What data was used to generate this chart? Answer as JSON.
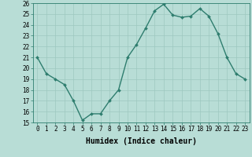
{
  "x": [
    0,
    1,
    2,
    3,
    4,
    5,
    6,
    7,
    8,
    9,
    10,
    11,
    12,
    13,
    14,
    15,
    16,
    17,
    18,
    19,
    20,
    21,
    22,
    23
  ],
  "y": [
    21.0,
    19.5,
    19.0,
    18.5,
    17.0,
    15.2,
    15.8,
    15.8,
    17.0,
    18.0,
    21.0,
    22.2,
    23.7,
    25.3,
    25.9,
    24.9,
    24.7,
    24.8,
    25.5,
    24.8,
    23.2,
    21.0,
    19.5,
    19.0
  ],
  "line_color": "#2e7d6e",
  "marker": "D",
  "marker_size": 2,
  "bg_color": "#b8ddd6",
  "grid_color": "#9ec8c0",
  "xlabel": "Humidex (Indice chaleur)",
  "ylim": [
    15,
    26
  ],
  "xlim": [
    -0.5,
    23.5
  ],
  "yticks": [
    15,
    16,
    17,
    18,
    19,
    20,
    21,
    22,
    23,
    24,
    25,
    26
  ],
  "xticks": [
    0,
    1,
    2,
    3,
    4,
    5,
    6,
    7,
    8,
    9,
    10,
    11,
    12,
    13,
    14,
    15,
    16,
    17,
    18,
    19,
    20,
    21,
    22,
    23
  ],
  "tick_label_fontsize": 5.5,
  "xlabel_fontsize": 7.0,
  "line_width": 1.0
}
